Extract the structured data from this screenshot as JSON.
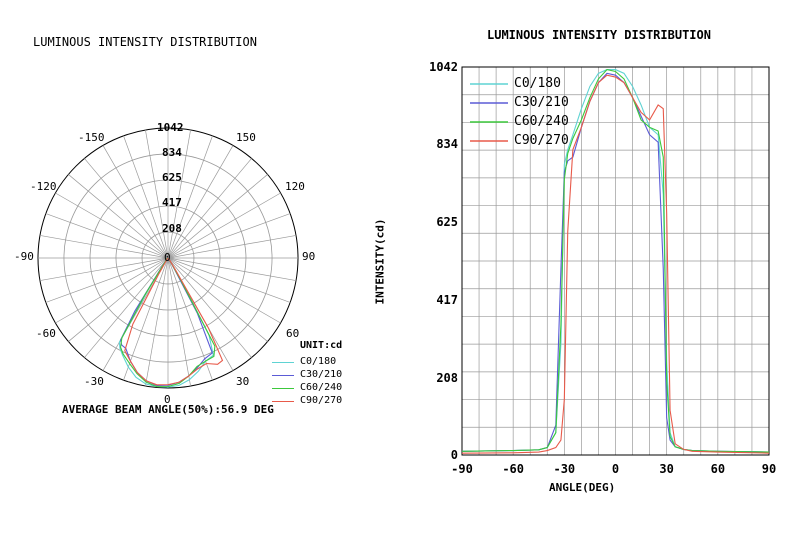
{
  "colors": {
    "C0_180": "#5fd3d3",
    "C30_210": "#5b5bd6",
    "C60_240": "#3cc83c",
    "C90_270": "#e85a4a",
    "grid": "#9a9a9a",
    "axis": "#000000"
  },
  "chart_data": [
    {
      "type": "polar",
      "title": "LUMINOUS INTENSITY DISTRIBUTION",
      "radial_ticks": [
        "208",
        "417",
        "625",
        "834",
        "1042"
      ],
      "radial_max": 1042,
      "angle_labels": [
        "0",
        "-30",
        "30",
        "-60",
        "60",
        "-90",
        "90",
        "-120",
        "120",
        "-150",
        "150",
        "0"
      ],
      "unit_label": "UNIT:cd",
      "legend": [
        "C0/180",
        "C30/210",
        "C60/240",
        "C90/270"
      ],
      "annotation": "AVERAGE BEAM ANGLE(50%):56.9 DEG",
      "series": [
        {
          "name": "C0/180",
          "color_key": "C0_180",
          "angles": [
            -90,
            -60,
            -45,
            -40,
            -35,
            -32,
            -30,
            -28,
            -25,
            -20,
            -15,
            -10,
            -5,
            0,
            5,
            10,
            15,
            20,
            25,
            28,
            30,
            32,
            35,
            40,
            45,
            60,
            90
          ],
          "values": [
            10,
            12,
            14,
            20,
            60,
            300,
            780,
            820,
            860,
            930,
            990,
            1025,
            1035,
            1035,
            1025,
            990,
            940,
            880,
            860,
            700,
            250,
            60,
            22,
            15,
            12,
            10,
            8
          ]
        },
        {
          "name": "C30/210",
          "color_key": "C30_210",
          "angles": [
            -90,
            -60,
            -45,
            -40,
            -35,
            -32,
            -30,
            -28,
            -25,
            -20,
            -15,
            -10,
            -5,
            0,
            5,
            10,
            15,
            20,
            25,
            28,
            30,
            32,
            35,
            40,
            45,
            60,
            90
          ],
          "values": [
            10,
            12,
            14,
            20,
            80,
            500,
            760,
            790,
            800,
            880,
            950,
            1000,
            1025,
            1020,
            1000,
            960,
            910,
            860,
            840,
            500,
            100,
            40,
            22,
            15,
            12,
            10,
            8
          ]
        },
        {
          "name": "C60/240",
          "color_key": "C60_240",
          "angles": [
            -90,
            -60,
            -45,
            -40,
            -35,
            -32,
            -30,
            -28,
            -25,
            -20,
            -15,
            -10,
            -5,
            0,
            5,
            10,
            15,
            20,
            25,
            28,
            30,
            32,
            35,
            40,
            45,
            60,
            90
          ],
          "values": [
            10,
            12,
            14,
            20,
            60,
            350,
            740,
            810,
            850,
            900,
            960,
            1010,
            1035,
            1030,
            1010,
            960,
            900,
            880,
            870,
            800,
            200,
            50,
            22,
            15,
            12,
            10,
            8
          ]
        },
        {
          "name": "C90/270",
          "color_key": "C90_270",
          "angles": [
            -90,
            -60,
            -45,
            -40,
            -35,
            -32,
            -30,
            -28,
            -25,
            -20,
            -15,
            -10,
            -5,
            0,
            5,
            10,
            15,
            20,
            25,
            28,
            30,
            32,
            35,
            40,
            45,
            60,
            90
          ],
          "values": [
            5,
            6,
            8,
            12,
            20,
            40,
            150,
            600,
            820,
            880,
            950,
            1000,
            1020,
            1015,
            1000,
            960,
            920,
            900,
            940,
            930,
            650,
            120,
            30,
            15,
            10,
            8,
            5
          ]
        }
      ]
    },
    {
      "type": "line",
      "title": "LUMINOUS INTENSITY DISTRIBUTION",
      "xlabel": "ANGLE(DEG)",
      "ylabel": "INTENSITY(cd)",
      "xlim": [
        -90,
        90
      ],
      "ylim": [
        0,
        1042
      ],
      "xticks": [
        "-90",
        "-60",
        "-30",
        "0",
        "30",
        "60",
        "90"
      ],
      "xtick_values": [
        -90,
        -60,
        -30,
        0,
        30,
        60,
        90
      ],
      "yticks": [
        "0",
        "208",
        "417",
        "625",
        "834",
        "1042"
      ],
      "ytick_values": [
        0,
        208,
        417,
        625,
        834,
        1042
      ],
      "grid": true,
      "legend": [
        "C0/180",
        "C30/210",
        "C60/240",
        "C90/270"
      ],
      "legend_position": "top-left",
      "series_ref": "same as polar series"
    }
  ]
}
